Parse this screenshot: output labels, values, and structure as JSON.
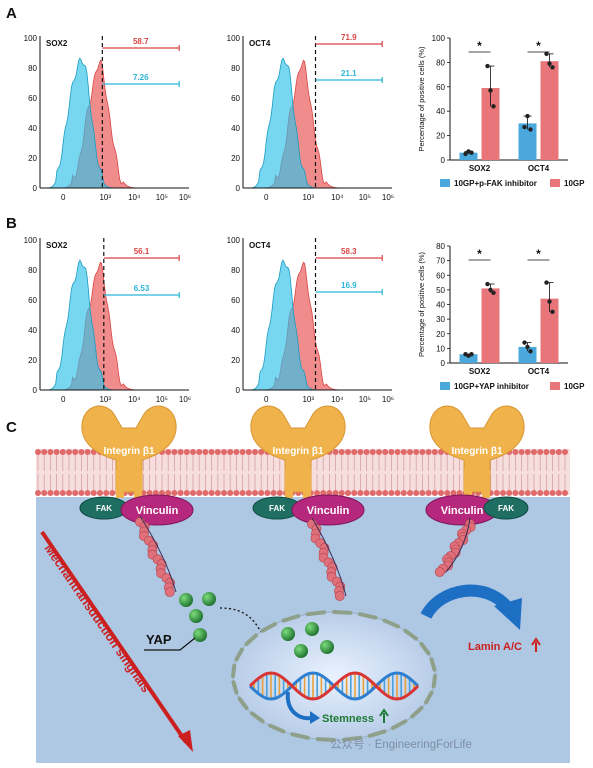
{
  "panels": {
    "A": {
      "letter": "A",
      "flow": [
        {
          "tag": "SOX2",
          "red_pct": "58.7",
          "blue_pct": "7.26"
        },
        {
          "tag": "OCT4",
          "red_pct": "71.9",
          "blue_pct": "21.1"
        }
      ],
      "bar": {
        "ylabel": "Percentage of positive cells (%)",
        "yticks": [
          "0",
          "20",
          "40",
          "60",
          "80",
          "100"
        ],
        "categories": [
          "SOX2",
          "OCT4"
        ],
        "legend": [
          "10GP+p-FAK inhibitor",
          "10GP"
        ],
        "sig": [
          "*",
          "*"
        ]
      }
    },
    "B": {
      "letter": "B",
      "flow": [
        {
          "tag": "SOX2",
          "red_pct": "56.1",
          "blue_pct": "6.53"
        },
        {
          "tag": "OCT4",
          "red_pct": "58.3",
          "blue_pct": "16.9"
        }
      ],
      "bar": {
        "ylabel": "Percentage of positive cells (%)",
        "yticks": [
          "0",
          "10",
          "20",
          "30",
          "40",
          "50",
          "60",
          "70",
          "80"
        ],
        "categories": [
          "SOX2",
          "OCT4"
        ],
        "legend": [
          "10GP+YAP inhibitor",
          "10GP"
        ],
        "sig": [
          "*",
          "*"
        ]
      }
    }
  },
  "flow_axis": {
    "yticks": [
      "0",
      "20",
      "40",
      "60",
      "80",
      "100"
    ],
    "xticks": [
      "0",
      "10³",
      "10⁴",
      "10⁵",
      "10⁶"
    ]
  },
  "chart_data": [
    {
      "type": "bar",
      "panel": "A",
      "categories": [
        "SOX2",
        "OCT4"
      ],
      "ylabel": "Percentage of positive cells (%)",
      "ylim": [
        0,
        100
      ],
      "series": [
        {
          "name": "10GP+p-FAK inhibitor",
          "values": [
            6,
            30
          ],
          "points": [
            [
              5,
              7,
              6
            ],
            [
              27,
              36,
              25
            ]
          ],
          "color": "#4aa8dc"
        },
        {
          "name": "10GP",
          "values": [
            59,
            81
          ],
          "points": [
            [
              77,
              57,
              44
            ],
            [
              87,
              79,
              76
            ]
          ],
          "color": "#e8757a"
        }
      ]
    },
    {
      "type": "bar",
      "panel": "B",
      "categories": [
        "SOX2",
        "OCT4"
      ],
      "ylabel": "Percentage of positive cells (%)",
      "ylim": [
        0,
        80
      ],
      "series": [
        {
          "name": "10GP+YAP inhibitor",
          "values": [
            6,
            11
          ],
          "points": [
            [
              6,
              5,
              6
            ],
            [
              14,
              11,
              8
            ]
          ],
          "color": "#4aa8dc"
        },
        {
          "name": "10GP",
          "values": [
            51,
            44
          ],
          "points": [
            [
              54,
              50,
              48
            ],
            [
              55,
              42,
              35
            ]
          ],
          "color": "#e8757a"
        }
      ]
    }
  ],
  "diagram": {
    "letter": "C",
    "integrin": "Integrin β1",
    "fak": "FAK",
    "vinculin": "Vinculin",
    "yap": "YAP",
    "mech": "Mechantransduction singnals",
    "lamin": "Lamin A/C",
    "stemness": "Stemness",
    "watermark": "公众号 · EngineeringForLife"
  }
}
